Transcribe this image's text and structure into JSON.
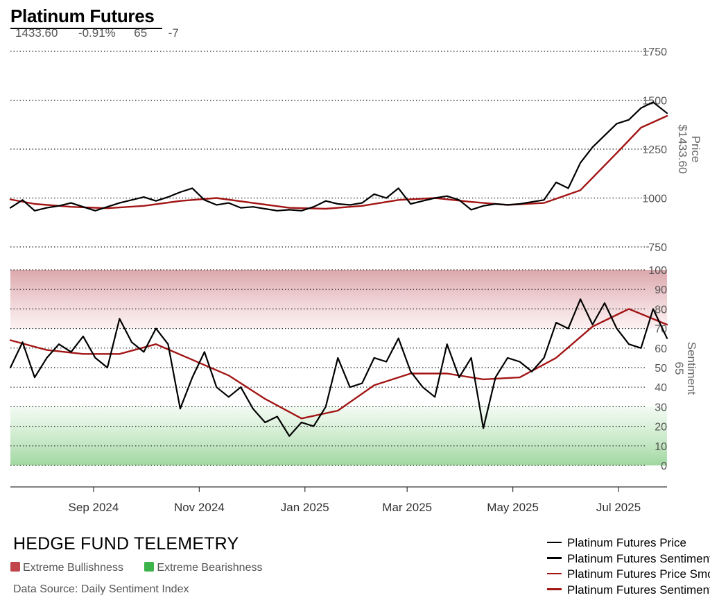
{
  "header": {
    "title": "Platinum Futures",
    "last_price": "1433.60",
    "change_pct": "-0.91%",
    "sentiment": "65",
    "sentiment_change": "-7"
  },
  "footer": {
    "brand": "HEDGE FUND TELEMETRY",
    "source": "Data Source: Daily Sentiment Index",
    "zones": [
      {
        "label": "Extreme Bullishness",
        "color": "#c0444a"
      },
      {
        "label": "Extreme Bearishness",
        "color": "#3cb44b"
      }
    ]
  },
  "legend": [
    {
      "label": "Platinum Futures Price",
      "color": "#000000"
    },
    {
      "label": "Platinum Futures Sentiment",
      "color": "#000000"
    },
    {
      "label": "Platinum Futures Price Smoothed",
      "color": "#a31515"
    },
    {
      "label": "Platinum Futures Sentiment Smoothed",
      "color": "#a31515"
    }
  ],
  "chart_data": [
    {
      "type": "line",
      "panel": "price",
      "axis_label": "Price",
      "axis_value_label": "$1433.60",
      "y_ticks": [
        750,
        1000,
        1250,
        1500,
        1750
      ],
      "ylim": [
        750,
        1750
      ],
      "grid": "dotted horizontal",
      "x_ticks": [
        "Sep 2024",
        "Nov 2024",
        "Jan 2025",
        "Mar 2025",
        "May 2025",
        "Jul 2025"
      ],
      "x_tick_dates": [
        "2024-09-01",
        "2024-11-01",
        "2025-01-01",
        "2025-03-01",
        "2025-05-01",
        "2025-07-01"
      ],
      "x_range": [
        "2024-07-15",
        "2025-07-29"
      ],
      "series": [
        {
          "name": "Platinum Futures Price",
          "color": "#000000",
          "points": [
            [
              "2024-07-15",
              950
            ],
            [
              "2024-07-22",
              990
            ],
            [
              "2024-07-29",
              935
            ],
            [
              "2024-08-05",
              950
            ],
            [
              "2024-08-12",
              960
            ],
            [
              "2024-08-19",
              975
            ],
            [
              "2024-08-26",
              955
            ],
            [
              "2024-09-02",
              935
            ],
            [
              "2024-09-09",
              955
            ],
            [
              "2024-09-16",
              975
            ],
            [
              "2024-09-23",
              990
            ],
            [
              "2024-09-30",
              1005
            ],
            [
              "2024-10-07",
              985
            ],
            [
              "2024-10-14",
              1005
            ],
            [
              "2024-10-21",
              1030
            ],
            [
              "2024-10-28",
              1050
            ],
            [
              "2024-11-04",
              990
            ],
            [
              "2024-11-11",
              965
            ],
            [
              "2024-11-18",
              975
            ],
            [
              "2024-11-25",
              950
            ],
            [
              "2024-12-02",
              955
            ],
            [
              "2024-12-09",
              945
            ],
            [
              "2024-12-16",
              935
            ],
            [
              "2024-12-23",
              940
            ],
            [
              "2024-12-30",
              935
            ],
            [
              "2025-01-06",
              955
            ],
            [
              "2025-01-13",
              985
            ],
            [
              "2025-01-20",
              970
            ],
            [
              "2025-01-27",
              965
            ],
            [
              "2025-02-03",
              975
            ],
            [
              "2025-02-10",
              1020
            ],
            [
              "2025-02-17",
              1000
            ],
            [
              "2025-02-24",
              1050
            ],
            [
              "2025-03-03",
              970
            ],
            [
              "2025-03-10",
              985
            ],
            [
              "2025-03-17",
              1000
            ],
            [
              "2025-03-24",
              1010
            ],
            [
              "2025-03-31",
              990
            ],
            [
              "2025-04-07",
              940
            ],
            [
              "2025-04-14",
              960
            ],
            [
              "2025-04-21",
              970
            ],
            [
              "2025-04-28",
              965
            ],
            [
              "2025-05-05",
              970
            ],
            [
              "2025-05-12",
              980
            ],
            [
              "2025-05-19",
              990
            ],
            [
              "2025-05-26",
              1080
            ],
            [
              "2025-06-02",
              1050
            ],
            [
              "2025-06-09",
              1180
            ],
            [
              "2025-06-16",
              1260
            ],
            [
              "2025-06-23",
              1320
            ],
            [
              "2025-06-30",
              1380
            ],
            [
              "2025-07-07",
              1400
            ],
            [
              "2025-07-14",
              1460
            ],
            [
              "2025-07-21",
              1490
            ],
            [
              "2025-07-29",
              1433.6
            ]
          ]
        },
        {
          "name": "Platinum Futures Price Smoothed",
          "color": "#a31515",
          "points": [
            [
              "2024-07-15",
              993
            ],
            [
              "2024-07-29",
              970
            ],
            [
              "2024-08-19",
              955
            ],
            [
              "2024-09-09",
              948
            ],
            [
              "2024-09-30",
              960
            ],
            [
              "2024-10-21",
              985
            ],
            [
              "2024-11-11",
              1000
            ],
            [
              "2024-12-02",
              975
            ],
            [
              "2024-12-23",
              950
            ],
            [
              "2025-01-13",
              945
            ],
            [
              "2025-02-03",
              960
            ],
            [
              "2025-02-24",
              990
            ],
            [
              "2025-03-17",
              1000
            ],
            [
              "2025-04-07",
              980
            ],
            [
              "2025-04-28",
              965
            ],
            [
              "2025-05-19",
              975
            ],
            [
              "2025-06-09",
              1040
            ],
            [
              "2025-06-30",
              1230
            ],
            [
              "2025-07-14",
              1360
            ],
            [
              "2025-07-29",
              1420
            ]
          ]
        }
      ]
    },
    {
      "type": "line",
      "panel": "sentiment",
      "axis_label": "Sentiment",
      "axis_value_label": "65",
      "y_ticks": [
        0,
        10,
        20,
        30,
        40,
        50,
        60,
        70,
        80,
        90,
        100
      ],
      "ylim": [
        0,
        100
      ],
      "grid": "dotted horizontal",
      "zones": [
        {
          "label": "Extreme Bullishness",
          "from": 70,
          "to": 100,
          "color": "#c0444a"
        },
        {
          "label": "Extreme Bearishness",
          "from": 0,
          "to": 30,
          "color": "#3cb44b"
        }
      ],
      "series": [
        {
          "name": "Platinum Futures Sentiment",
          "color": "#000000",
          "points": [
            [
              "2024-07-15",
              50
            ],
            [
              "2024-07-22",
              63
            ],
            [
              "2024-07-29",
              45
            ],
            [
              "2024-08-05",
              55
            ],
            [
              "2024-08-12",
              62
            ],
            [
              "2024-08-19",
              58
            ],
            [
              "2024-08-26",
              66
            ],
            [
              "2024-09-02",
              55
            ],
            [
              "2024-09-09",
              50
            ],
            [
              "2024-09-16",
              75
            ],
            [
              "2024-09-23",
              63
            ],
            [
              "2024-09-30",
              58
            ],
            [
              "2024-10-07",
              70
            ],
            [
              "2024-10-14",
              62
            ],
            [
              "2024-10-21",
              29
            ],
            [
              "2024-10-28",
              45
            ],
            [
              "2024-11-04",
              58
            ],
            [
              "2024-11-11",
              40
            ],
            [
              "2024-11-18",
              35
            ],
            [
              "2024-11-25",
              40
            ],
            [
              "2024-12-02",
              29
            ],
            [
              "2024-12-09",
              22
            ],
            [
              "2024-12-16",
              25
            ],
            [
              "2024-12-23",
              15
            ],
            [
              "2024-12-30",
              22
            ],
            [
              "2025-01-06",
              20
            ],
            [
              "2025-01-13",
              30
            ],
            [
              "2025-01-20",
              55
            ],
            [
              "2025-01-27",
              40
            ],
            [
              "2025-02-03",
              42
            ],
            [
              "2025-02-10",
              55
            ],
            [
              "2025-02-17",
              53
            ],
            [
              "2025-02-24",
              65
            ],
            [
              "2025-03-03",
              48
            ],
            [
              "2025-03-10",
              40
            ],
            [
              "2025-03-17",
              35
            ],
            [
              "2025-03-24",
              62
            ],
            [
              "2025-03-31",
              45
            ],
            [
              "2025-04-07",
              55
            ],
            [
              "2025-04-14",
              19
            ],
            [
              "2025-04-21",
              45
            ],
            [
              "2025-04-28",
              55
            ],
            [
              "2025-05-05",
              53
            ],
            [
              "2025-05-12",
              48
            ],
            [
              "2025-05-19",
              55
            ],
            [
              "2025-05-26",
              73
            ],
            [
              "2025-06-02",
              70
            ],
            [
              "2025-06-09",
              85
            ],
            [
              "2025-06-16",
              72
            ],
            [
              "2025-06-23",
              83
            ],
            [
              "2025-06-30",
              70
            ],
            [
              "2025-07-07",
              62
            ],
            [
              "2025-07-14",
              60
            ],
            [
              "2025-07-21",
              80
            ],
            [
              "2025-07-29",
              65
            ]
          ]
        },
        {
          "name": "Platinum Futures Sentiment Smoothed",
          "color": "#a31515",
          "points": [
            [
              "2024-07-15",
              64
            ],
            [
              "2024-08-05",
              59
            ],
            [
              "2024-08-26",
              57
            ],
            [
              "2024-09-16",
              57
            ],
            [
              "2024-10-07",
              62
            ],
            [
              "2024-10-28",
              54
            ],
            [
              "2024-11-18",
              46
            ],
            [
              "2024-12-09",
              34
            ],
            [
              "2024-12-30",
              24
            ],
            [
              "2025-01-20",
              28
            ],
            [
              "2025-02-10",
              41
            ],
            [
              "2025-03-03",
              47
            ],
            [
              "2025-03-24",
              47
            ],
            [
              "2025-04-14",
              44
            ],
            [
              "2025-05-05",
              45
            ],
            [
              "2025-05-26",
              55
            ],
            [
              "2025-06-16",
              71
            ],
            [
              "2025-07-07",
              80
            ],
            [
              "2025-07-29",
              72
            ]
          ]
        }
      ]
    }
  ]
}
